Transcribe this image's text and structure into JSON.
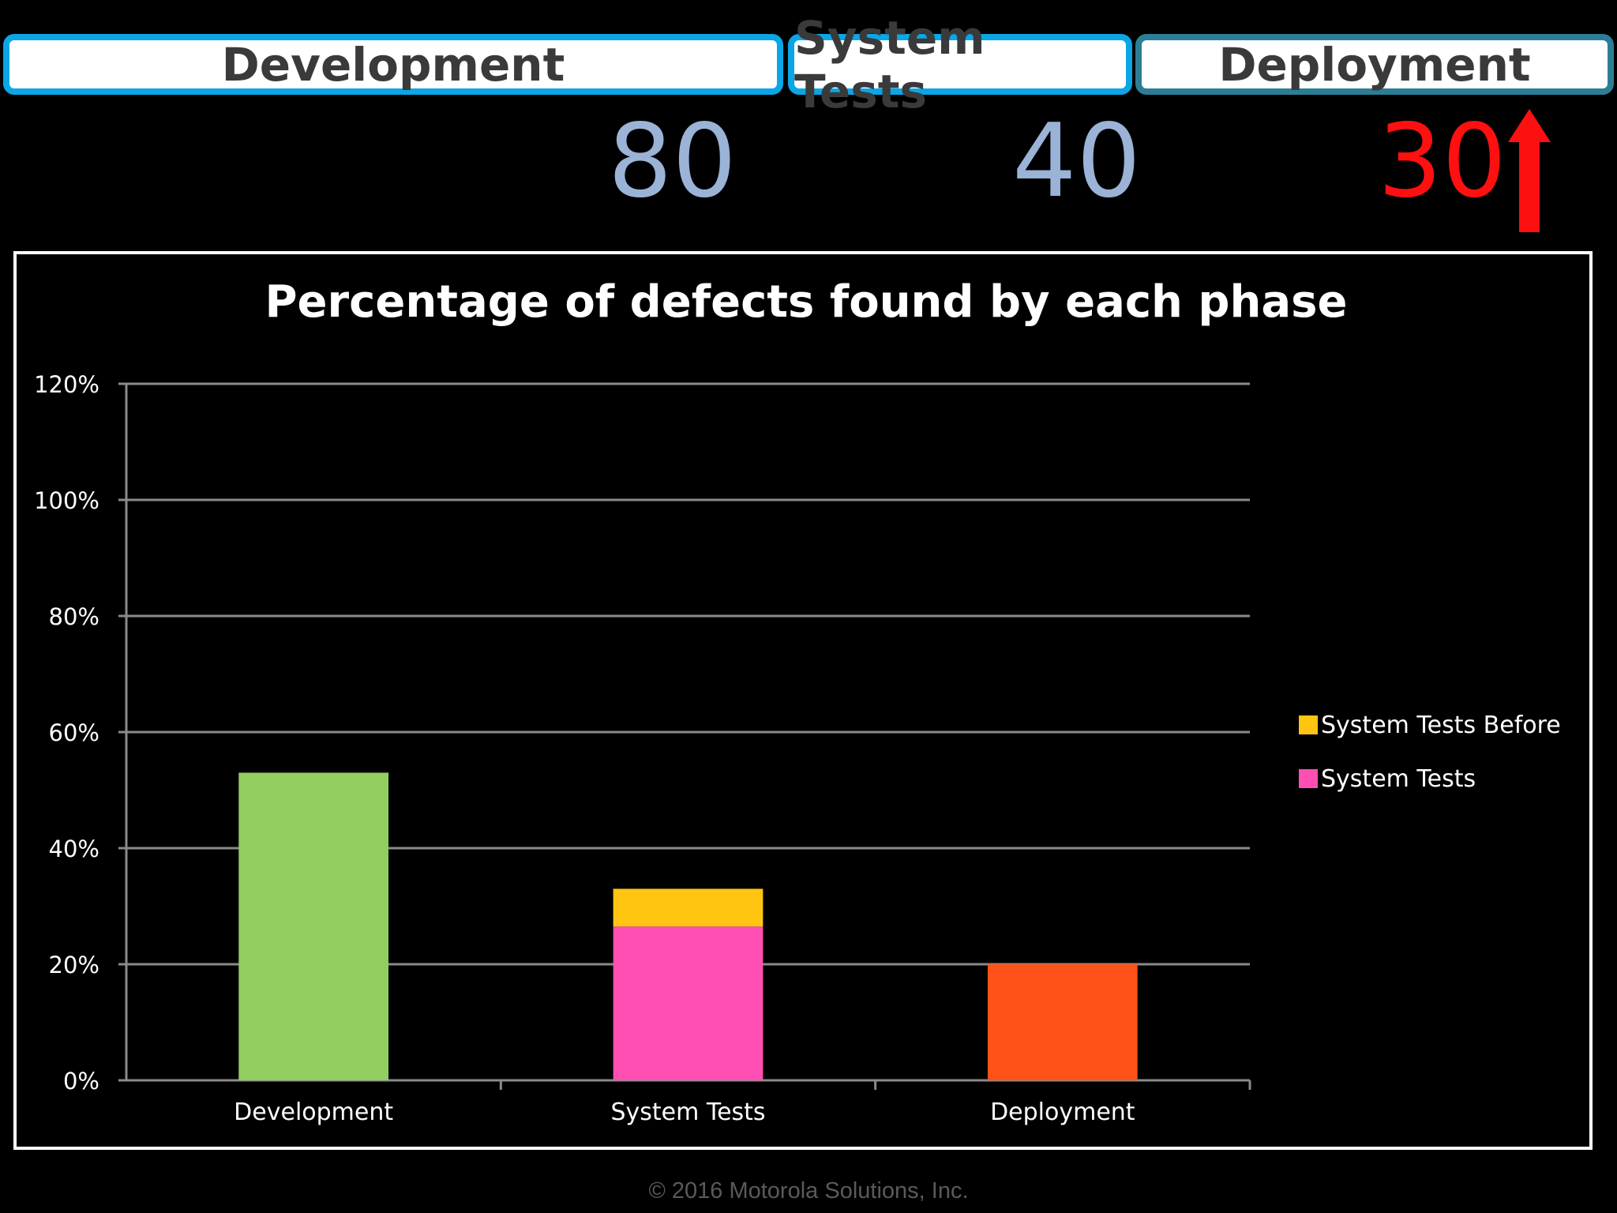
{
  "phases": {
    "development": "Development",
    "system_tests": "System Tests",
    "deployment": "Deployment"
  },
  "counts": {
    "development": "80",
    "system_tests": "40",
    "deployment": "30"
  },
  "colors": {
    "pill_border": "#0aa6e6",
    "pill_border_deployment": "#2c7e96",
    "count_default": "#9ab3d6",
    "count_alert": "#ff1010"
  },
  "icons": {
    "deployment_trend": "up-arrow-icon"
  },
  "footer": "© 2016 Motorola Solutions, Inc.",
  "chart_data": {
    "type": "bar",
    "title": "Percentage of defects found by each phase",
    "categories": [
      "Development",
      "System Tests",
      "Deployment"
    ],
    "ylim": [
      0,
      120
    ],
    "yticks": [
      "0%",
      "20%",
      "40%",
      "60%",
      "80%",
      "100%",
      "120%"
    ],
    "grid": true,
    "legend_placement": "right",
    "bars": [
      {
        "category": "Development",
        "value": 53,
        "color": "#92cd5f"
      },
      {
        "category": "System Tests",
        "value": 26.5,
        "color": "#ff4fb2",
        "series": "System Tests"
      },
      {
        "category": "System Tests",
        "value": 6.5,
        "base": 26.5,
        "color": "#ffc511",
        "series": "System Tests Before"
      },
      {
        "category": "Deployment",
        "value": 20,
        "color": "#ff5218"
      }
    ],
    "legend": [
      {
        "name": "System Tests Before",
        "color": "#ffc511"
      },
      {
        "name": "System Tests",
        "color": "#ff4fb2"
      }
    ]
  }
}
